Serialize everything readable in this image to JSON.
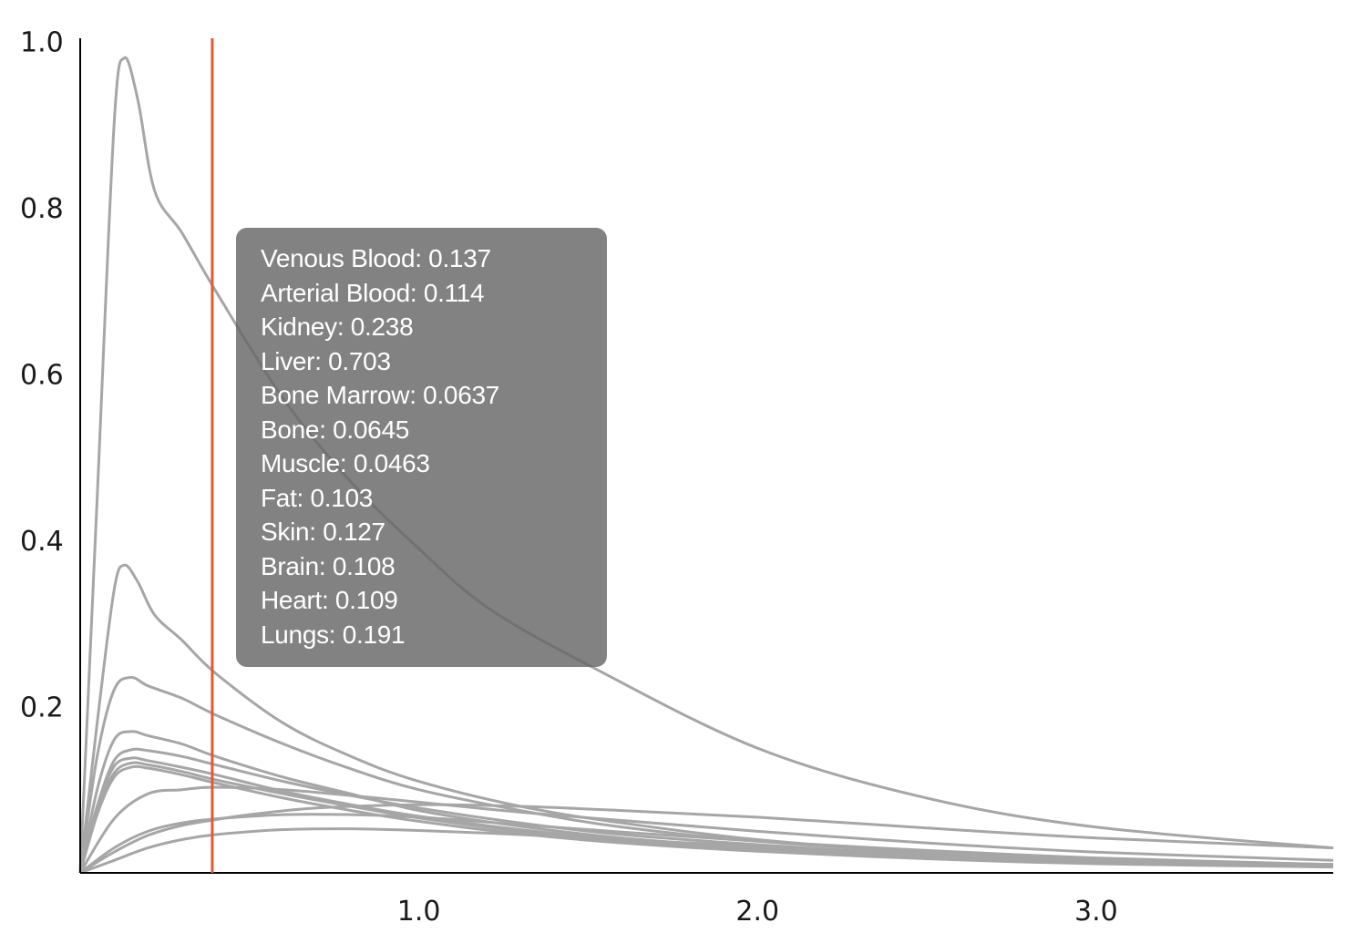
{
  "chart_data": {
    "type": "line",
    "title": "",
    "xlabel": "",
    "ylabel": "",
    "xlim": [
      0,
      3.7
    ],
    "ylim": [
      0,
      1.03
    ],
    "x_ticks": [
      "1.0",
      "2.0",
      "3.0"
    ],
    "y_ticks": [
      "0.2",
      "0.4",
      "0.6",
      "0.8",
      "1.0"
    ],
    "line_color": "#a6a6a6",
    "cursor": {
      "x": 0.39,
      "color": "#e05a3a"
    },
    "series": [
      {
        "name": "Liver",
        "x": [
          0,
          0.05,
          0.1,
          0.13,
          0.17,
          0.22,
          0.3,
          0.4,
          0.6,
          0.8,
          1.0,
          1.2,
          1.5,
          2.0,
          2.5,
          3.0,
          3.7
        ],
        "y": [
          0,
          0.45,
          0.9,
          0.98,
          0.93,
          0.82,
          0.77,
          0.7,
          0.57,
          0.47,
          0.39,
          0.32,
          0.25,
          0.15,
          0.09,
          0.055,
          0.03
        ]
      },
      {
        "name": "Kidney",
        "x": [
          0,
          0.05,
          0.1,
          0.13,
          0.17,
          0.22,
          0.3,
          0.4,
          0.6,
          0.8,
          1.0,
          1.3,
          1.6,
          2.0,
          2.5,
          3.0,
          3.7
        ],
        "y": [
          0,
          0.18,
          0.34,
          0.37,
          0.35,
          0.31,
          0.28,
          0.24,
          0.18,
          0.14,
          0.11,
          0.08,
          0.06,
          0.04,
          0.025,
          0.017,
          0.01
        ]
      },
      {
        "name": "Lungs",
        "x": [
          0,
          0.05,
          0.1,
          0.15,
          0.2,
          0.3,
          0.4,
          0.6,
          0.8,
          1.0,
          1.3,
          1.6,
          2.0,
          2.5,
          3.0,
          3.7
        ],
        "y": [
          0,
          0.14,
          0.22,
          0.235,
          0.225,
          0.21,
          0.19,
          0.155,
          0.125,
          0.1,
          0.075,
          0.055,
          0.038,
          0.025,
          0.016,
          0.01
        ]
      },
      {
        "name": "Venous Blood",
        "x": [
          0,
          0.05,
          0.1,
          0.15,
          0.2,
          0.3,
          0.4,
          0.6,
          0.8,
          1.0,
          1.3,
          1.6,
          2.0,
          2.5,
          3.0,
          3.7
        ],
        "y": [
          0,
          0.1,
          0.16,
          0.17,
          0.165,
          0.155,
          0.14,
          0.115,
          0.095,
          0.075,
          0.056,
          0.042,
          0.03,
          0.02,
          0.013,
          0.008
        ]
      },
      {
        "name": "Skin",
        "x": [
          0,
          0.05,
          0.1,
          0.15,
          0.2,
          0.3,
          0.4,
          0.6,
          0.8,
          1.0,
          1.3,
          1.6,
          2.0,
          2.5,
          3.0,
          3.7
        ],
        "y": [
          0,
          0.08,
          0.135,
          0.148,
          0.147,
          0.14,
          0.13,
          0.11,
          0.093,
          0.078,
          0.06,
          0.046,
          0.034,
          0.022,
          0.015,
          0.01
        ]
      },
      {
        "name": "Arterial Blood",
        "x": [
          0,
          0.05,
          0.1,
          0.15,
          0.2,
          0.3,
          0.4,
          0.6,
          0.8,
          1.0,
          1.3,
          1.6,
          2.0,
          2.5,
          3.0,
          3.7
        ],
        "y": [
          0,
          0.08,
          0.128,
          0.138,
          0.135,
          0.127,
          0.118,
          0.098,
          0.082,
          0.068,
          0.052,
          0.04,
          0.03,
          0.02,
          0.013,
          0.008
        ]
      },
      {
        "name": "Heart",
        "x": [
          0,
          0.05,
          0.1,
          0.15,
          0.2,
          0.3,
          0.4,
          0.6,
          0.8,
          1.0,
          1.3,
          1.6,
          2.0,
          2.5,
          3.0,
          3.7
        ],
        "y": [
          0,
          0.075,
          0.12,
          0.132,
          0.13,
          0.122,
          0.112,
          0.095,
          0.08,
          0.066,
          0.05,
          0.038,
          0.028,
          0.018,
          0.012,
          0.008
        ]
      },
      {
        "name": "Brain",
        "x": [
          0,
          0.05,
          0.1,
          0.15,
          0.2,
          0.3,
          0.4,
          0.6,
          0.8,
          1.0,
          1.3,
          1.6,
          2.0,
          2.5,
          3.0,
          3.7
        ],
        "y": [
          0,
          0.07,
          0.115,
          0.127,
          0.126,
          0.118,
          0.108,
          0.09,
          0.075,
          0.062,
          0.047,
          0.036,
          0.026,
          0.017,
          0.011,
          0.007
        ]
      },
      {
        "name": "Fat",
        "x": [
          0,
          0.1,
          0.2,
          0.3,
          0.4,
          0.6,
          0.8,
          1.0,
          1.3,
          1.6,
          2.0,
          2.5,
          3.0,
          3.7
        ],
        "y": [
          0,
          0.065,
          0.095,
          0.1,
          0.103,
          0.1,
          0.093,
          0.085,
          0.073,
          0.063,
          0.05,
          0.036,
          0.025,
          0.015
        ]
      },
      {
        "name": "Bone Marrow",
        "x": [
          0,
          0.1,
          0.2,
          0.3,
          0.4,
          0.5,
          0.7,
          1.0,
          1.3,
          1.6,
          2.0,
          2.5,
          3.0,
          3.7
        ],
        "y": [
          0,
          0.025,
          0.045,
          0.057,
          0.064,
          0.07,
          0.078,
          0.082,
          0.08,
          0.075,
          0.067,
          0.054,
          0.042,
          0.03
        ]
      },
      {
        "name": "Bone",
        "x": [
          0,
          0.1,
          0.2,
          0.3,
          0.4,
          0.6,
          0.8,
          1.0,
          1.3,
          1.6,
          2.0,
          2.5,
          3.0,
          3.7
        ],
        "y": [
          0,
          0.03,
          0.05,
          0.06,
          0.065,
          0.07,
          0.07,
          0.067,
          0.058,
          0.049,
          0.038,
          0.027,
          0.018,
          0.01
        ]
      },
      {
        "name": "Muscle",
        "x": [
          0,
          0.1,
          0.2,
          0.3,
          0.4,
          0.6,
          0.8,
          1.0,
          1.3,
          1.6,
          2.0,
          2.5,
          3.0,
          3.7
        ],
        "y": [
          0,
          0.015,
          0.03,
          0.04,
          0.046,
          0.052,
          0.053,
          0.051,
          0.046,
          0.04,
          0.032,
          0.023,
          0.016,
          0.01
        ]
      }
    ]
  },
  "tooltip": {
    "lines": [
      "Venous Blood: 0.137",
      "Arterial Blood: 0.114",
      "Kidney: 0.238",
      "Liver: 0.703",
      "Bone Marrow: 0.0637",
      "Bone: 0.0645",
      "Muscle: 0.0463",
      "Fat: 0.103",
      "Skin: 0.127",
      "Brain: 0.108",
      "Heart: 0.109",
      "Lungs: 0.191"
    ]
  }
}
